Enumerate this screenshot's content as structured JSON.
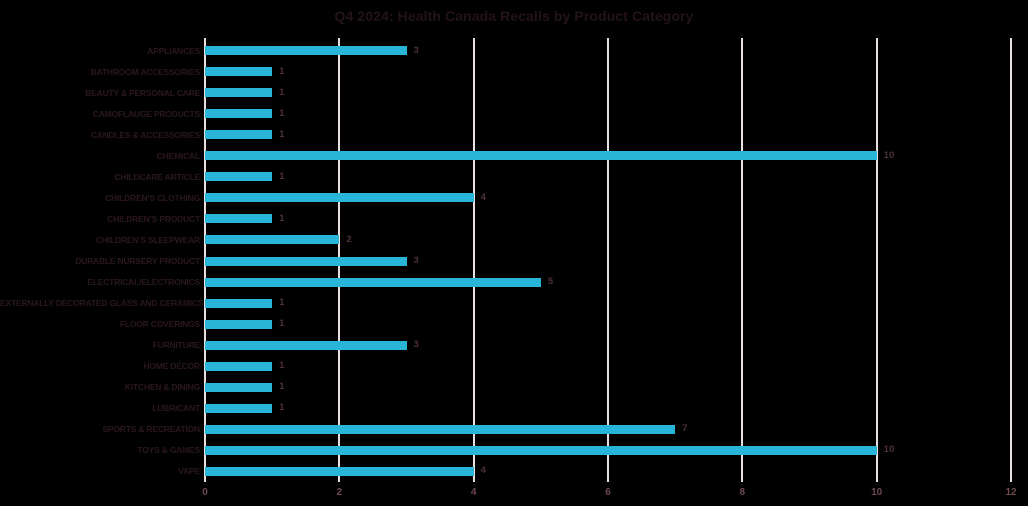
{
  "chart_data": {
    "type": "bar",
    "orientation": "horizontal",
    "title": "Q4 2024: Health Canada Recalls by Product Category",
    "categories": [
      "APPLIANCES",
      "BATHROOM ACCESSORIES",
      "BEAUTY & PERSONAL CARE",
      "CAMOFLAUGE PRODUCTS",
      "CANDLES & ACCESSORIES",
      "CHEMICAL",
      "CHILDCARE ARTICLE",
      "CHILDREN’S CLOTHING",
      "CHILDREN’S PRODUCT",
      "CHILDREN’S SLEEPWEAR",
      "DURABLE NURSERY PRODUCT",
      "ELECTRICAL/ELECTRONICS",
      "EXTERNALLY DECORATED GLASS AND CERAMICS",
      "FLOOR COVERINGS",
      "FURNITURE",
      "HOME DÉCOR",
      "KITCHEN & DINING",
      "LUBRICANT",
      "SPORTS & RECREATION",
      "TOYS & GAMES",
      "VAPE"
    ],
    "values": [
      3,
      1,
      1,
      1,
      1,
      10,
      1,
      4,
      1,
      2,
      3,
      5,
      1,
      1,
      3,
      1,
      1,
      1,
      7,
      10,
      4
    ],
    "data_labels": [
      3,
      1,
      1,
      1,
      1,
      10,
      1,
      4,
      1,
      2,
      3,
      5,
      1,
      1,
      3,
      1,
      1,
      1,
      7,
      10,
      4
    ],
    "xlabel": "",
    "ylabel": "",
    "xlim": [
      0,
      12
    ],
    "x_ticks": [
      0,
      2,
      4,
      6,
      8,
      10,
      12
    ],
    "grid": "vertical",
    "legend": "none",
    "colors": {
      "background": "#000000",
      "bar": "#29b5d8",
      "gridline": "#e8dede",
      "title": "#231318",
      "category_label": "#2a171c",
      "value_label": "#4e3037",
      "tick_label": "#6e4a52"
    }
  }
}
